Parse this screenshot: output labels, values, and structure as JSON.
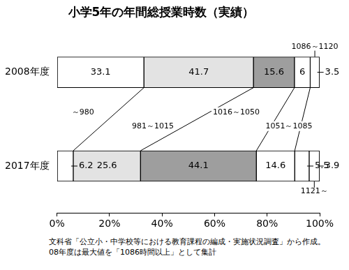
{
  "chart_data": {
    "type": "bar",
    "title": "小学5年の年間総授業時数（実績）",
    "orientation": "horizontal",
    "stacked": true,
    "data_labels": true,
    "grid": false,
    "categories": [
      "2008年度",
      "2017年度"
    ],
    "series": [
      {
        "name": "～980",
        "color": "#ffffff",
        "values": [
          33.1,
          6.2
        ]
      },
      {
        "name": "981～1015",
        "color": "#e3e3e3",
        "values": [
          41.7,
          25.6
        ]
      },
      {
        "name": "1016～1050",
        "color": "#9e9e9e",
        "values": [
          15.6,
          44.1
        ]
      },
      {
        "name": "1051～1085",
        "color": "#ffffff",
        "values": [
          6,
          14.6
        ]
      },
      {
        "name": "1086～1120",
        "color": "#ffffff",
        "values": [
          3.5,
          5.5
        ]
      },
      {
        "name": "1121～",
        "color": "#ffffff",
        "values": [
          null,
          3.9
        ]
      }
    ],
    "xlim": [
      0,
      100
    ],
    "xticks": [
      {
        "value": 0,
        "label": "0%"
      },
      {
        "value": 20,
        "label": "20%"
      },
      {
        "value": 40,
        "label": "40%"
      },
      {
        "value": 60,
        "label": "60%"
      },
      {
        "value": 80,
        "label": "80%"
      },
      {
        "value": 100,
        "label": "100%"
      }
    ],
    "annotations": [
      "文科省「公立小・中学校等における教育課程の編成・実施状況調査」から作成。",
      "08年度は最大値を「1086時間以上」として集計"
    ]
  }
}
